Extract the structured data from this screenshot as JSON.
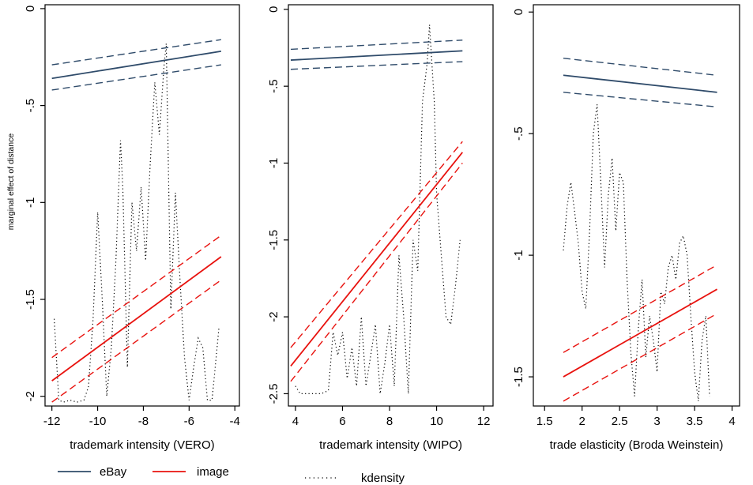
{
  "legend": {
    "items": [
      {
        "label": "eBay",
        "style": "solid",
        "color": "#2f4b6a"
      },
      {
        "label": "image",
        "style": "solid",
        "color": "#e8120e"
      },
      {
        "label": "kdensity",
        "style": "dotted",
        "color": "#000000"
      }
    ]
  },
  "colors": {
    "ebay": "#2f4b6a",
    "image": "#e8120e",
    "kdensity": "#000000"
  },
  "chart_data": [
    {
      "type": "line",
      "xlabel": "trademark intensity (VERO)",
      "ylabel": "marginal effect of distance",
      "xlim": [
        -12.3,
        -3.8
      ],
      "ylim": [
        -2.05,
        0.02
      ],
      "xticks": [
        -12,
        -10,
        -8,
        -6,
        -4
      ],
      "yticks": [
        0,
        -0.5,
        -1,
        -1.5,
        -2
      ],
      "ytick_labels": [
        "0",
        "-.5",
        "-1",
        "-1.5",
        "-2"
      ],
      "series": [
        {
          "name": "eBay",
          "x": [
            -12.0,
            -4.6
          ],
          "y": [
            -0.36,
            -0.22
          ],
          "ci_low": [
            -0.42,
            -0.29
          ],
          "ci_high": [
            -0.29,
            -0.16
          ]
        },
        {
          "name": "image",
          "x": [
            -12.0,
            -4.6
          ],
          "y": [
            -1.92,
            -1.28
          ],
          "ci_low": [
            -2.03,
            -1.4
          ],
          "ci_high": [
            -1.8,
            -1.17
          ]
        }
      ],
      "kdensity": {
        "x": [
          -11.9,
          -11.7,
          -11.5,
          -11.2,
          -10.9,
          -10.6,
          -10.4,
          -10.2,
          -10.0,
          -9.8,
          -9.6,
          -9.4,
          -9.2,
          -9.0,
          -8.9,
          -8.7,
          -8.5,
          -8.3,
          -8.1,
          -7.9,
          -7.7,
          -7.5,
          -7.3,
          -7.1,
          -7.0,
          -6.8,
          -6.6,
          -6.4,
          -6.2,
          -6.0,
          -5.8,
          -5.6,
          -5.4,
          -5.2,
          -5.0,
          -4.9,
          -4.7
        ],
        "y": [
          -1.6,
          -2.02,
          -2.03,
          -2.02,
          -2.03,
          -2.02,
          -1.95,
          -1.6,
          -1.05,
          -1.5,
          -2.0,
          -1.75,
          -1.3,
          -0.68,
          -0.92,
          -1.85,
          -1.0,
          -1.25,
          -0.92,
          -1.3,
          -0.8,
          -0.38,
          -0.65,
          -0.3,
          -0.18,
          -1.55,
          -0.95,
          -1.4,
          -1.8,
          -2.02,
          -1.85,
          -1.7,
          -1.75,
          -2.02,
          -2.02,
          -1.9,
          -1.65
        ]
      }
    },
    {
      "type": "line",
      "xlabel": "trademark intensity (WIPO)",
      "ylabel": "",
      "xlim": [
        3.7,
        12.4
      ],
      "ylim": [
        -2.58,
        0.03
      ],
      "xticks": [
        4,
        6,
        8,
        10,
        12
      ],
      "yticks": [
        0,
        -0.5,
        -1,
        -1.5,
        -2,
        -2.5
      ],
      "ytick_labels": [
        "0",
        "-.5",
        "-1",
        "-1.5",
        "-2",
        "-2.5"
      ],
      "series": [
        {
          "name": "eBay",
          "x": [
            3.8,
            11.1
          ],
          "y": [
            -0.33,
            -0.27
          ],
          "ci_low": [
            -0.39,
            -0.34
          ],
          "ci_high": [
            -0.26,
            -0.2
          ]
        },
        {
          "name": "image",
          "x": [
            3.8,
            11.1
          ],
          "y": [
            -2.32,
            -0.93
          ],
          "ci_low": [
            -2.42,
            -1.0
          ],
          "ci_high": [
            -2.2,
            -0.86
          ]
        }
      ],
      "kdensity": {
        "x": [
          4.0,
          4.2,
          4.5,
          4.8,
          5.1,
          5.4,
          5.6,
          5.8,
          6.0,
          6.2,
          6.4,
          6.6,
          6.8,
          7.0,
          7.2,
          7.4,
          7.6,
          7.8,
          8.0,
          8.2,
          8.4,
          8.6,
          8.8,
          9.0,
          9.2,
          9.4,
          9.6,
          9.7,
          9.8,
          9.9,
          10.0,
          10.2,
          10.4,
          10.6,
          10.8,
          11.0
        ],
        "y": [
          -2.45,
          -2.5,
          -2.5,
          -2.5,
          -2.5,
          -2.48,
          -2.1,
          -2.25,
          -2.1,
          -2.4,
          -2.2,
          -2.45,
          -2.0,
          -2.45,
          -2.25,
          -2.05,
          -2.5,
          -2.3,
          -2.05,
          -2.45,
          -1.6,
          -2.0,
          -2.5,
          -1.5,
          -1.7,
          -0.6,
          -0.35,
          -0.1,
          -0.35,
          -0.6,
          -1.2,
          -1.6,
          -2.0,
          -2.05,
          -1.8,
          -1.5
        ]
      }
    },
    {
      "type": "line",
      "xlabel": "trade elasticity (Broda Weinstein)",
      "ylabel": "",
      "xlim": [
        1.35,
        4.1
      ],
      "ylim": [
        -1.62,
        0.03
      ],
      "xticks": [
        1.5,
        2,
        2.5,
        3,
        3.5,
        4
      ],
      "xtick_labels": [
        "1.5",
        "2",
        "2.5",
        "3",
        "3.5",
        "4"
      ],
      "yticks": [
        0,
        -0.5,
        -1,
        -1.5
      ],
      "ytick_labels": [
        "0",
        "-.5",
        "-1",
        "-1.5"
      ],
      "series": [
        {
          "name": "eBay",
          "x": [
            1.75,
            3.8
          ],
          "y": [
            -0.26,
            -0.33
          ],
          "ci_low": [
            -0.33,
            -0.39
          ],
          "ci_high": [
            -0.19,
            -0.26
          ]
        },
        {
          "name": "image",
          "x": [
            1.75,
            3.8
          ],
          "y": [
            -1.5,
            -1.14
          ],
          "ci_low": [
            -1.6,
            -1.24
          ],
          "ci_high": [
            -1.4,
            -1.04
          ]
        }
      ],
      "kdensity": {
        "x": [
          1.75,
          1.8,
          1.85,
          1.9,
          1.95,
          2.0,
          2.05,
          2.1,
          2.15,
          2.2,
          2.25,
          2.3,
          2.35,
          2.4,
          2.45,
          2.5,
          2.55,
          2.6,
          2.65,
          2.7,
          2.75,
          2.8,
          2.85,
          2.9,
          2.95,
          3.0,
          3.05,
          3.1,
          3.15,
          3.2,
          3.25,
          3.3,
          3.35,
          3.4,
          3.45,
          3.5,
          3.55,
          3.6,
          3.65,
          3.7
        ],
        "y": [
          -0.98,
          -0.8,
          -0.7,
          -0.82,
          -0.95,
          -1.15,
          -1.22,
          -0.9,
          -0.5,
          -0.38,
          -0.7,
          -1.05,
          -0.75,
          -0.6,
          -0.9,
          -0.66,
          -0.7,
          -1.1,
          -1.4,
          -1.58,
          -1.3,
          -1.1,
          -1.42,
          -1.25,
          -1.35,
          -1.48,
          -1.15,
          -1.2,
          -1.05,
          -1.0,
          -1.1,
          -0.95,
          -0.92,
          -1.0,
          -1.25,
          -1.48,
          -1.6,
          -1.35,
          -1.25,
          -1.58
        ]
      }
    }
  ]
}
